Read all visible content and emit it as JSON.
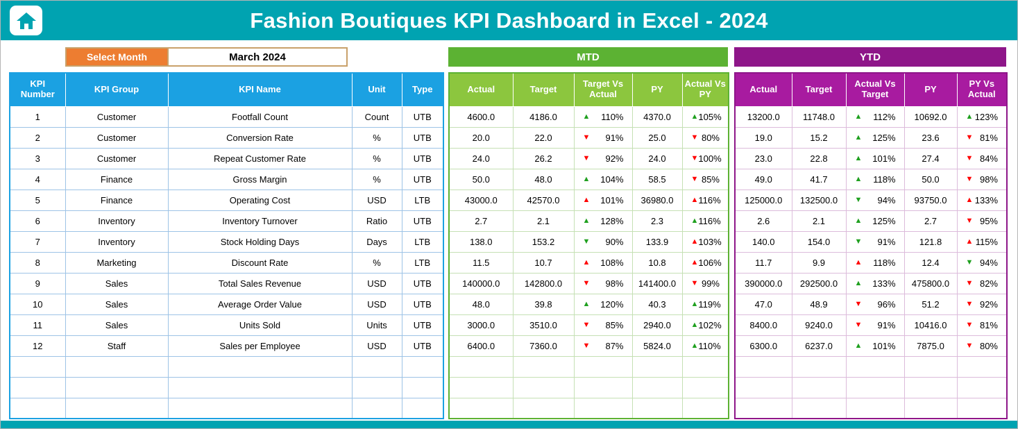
{
  "header": {
    "title": "Fashion Boutiques KPI Dashboard in Excel - 2024"
  },
  "controls": {
    "select_month_label": "Select Month",
    "selected_month": "March 2024"
  },
  "sections": {
    "mtd": "MTD",
    "ytd": "YTD"
  },
  "colors": {
    "banner_teal": "#00a3b1",
    "select_month_orange": "#ed7d31",
    "kpi_header_blue": "#1ba1e2",
    "mtd_bar_green": "#5cb233",
    "mtd_header_green": "#8cc63e",
    "ytd_bar_purple": "#8e1689",
    "ytd_header_purple": "#a81ba0",
    "arrow_green": "#1fa01f",
    "arrow_red": "#ff0000"
  },
  "kpi_table": {
    "headers": [
      "KPI Number",
      "KPI Group",
      "KPI Name",
      "Unit",
      "Type"
    ],
    "mtd_headers": [
      "Actual",
      "Target",
      "Target Vs Actual",
      "PY",
      "Actual Vs PY"
    ],
    "ytd_headers": [
      "Actual",
      "Target",
      "Actual Vs Target",
      "PY",
      "PY Vs Actual"
    ],
    "empty_rows": 3,
    "rows": [
      {
        "number": "1",
        "group": "Customer",
        "name": "Footfall Count",
        "unit": "Count",
        "type": "UTB",
        "mtd": {
          "actual": "4600.0",
          "target": "4186.0",
          "target_vs_actual": {
            "dir": "up",
            "color": "green",
            "value": "110%"
          },
          "py": "4370.0",
          "actual_vs_py": {
            "dir": "up",
            "color": "green",
            "value": "105%"
          }
        },
        "ytd": {
          "actual": "13200.0",
          "target": "11748.0",
          "actual_vs_target": {
            "dir": "up",
            "color": "green",
            "value": "112%"
          },
          "py": "10692.0",
          "py_vs_actual": {
            "dir": "up",
            "color": "green",
            "value": "123%"
          }
        }
      },
      {
        "number": "2",
        "group": "Customer",
        "name": "Conversion Rate",
        "unit": "%",
        "type": "UTB",
        "mtd": {
          "actual": "20.0",
          "target": "22.0",
          "target_vs_actual": {
            "dir": "down",
            "color": "red",
            "value": "91%"
          },
          "py": "25.0",
          "actual_vs_py": {
            "dir": "down",
            "color": "red",
            "value": "80%"
          }
        },
        "ytd": {
          "actual": "19.0",
          "target": "15.2",
          "actual_vs_target": {
            "dir": "up",
            "color": "green",
            "value": "125%"
          },
          "py": "23.6",
          "py_vs_actual": {
            "dir": "down",
            "color": "red",
            "value": "81%"
          }
        }
      },
      {
        "number": "3",
        "group": "Customer",
        "name": "Repeat Customer Rate",
        "unit": "%",
        "type": "UTB",
        "mtd": {
          "actual": "24.0",
          "target": "26.2",
          "target_vs_actual": {
            "dir": "down",
            "color": "red",
            "value": "92%"
          },
          "py": "24.0",
          "actual_vs_py": {
            "dir": "down",
            "color": "red",
            "value": "100%"
          }
        },
        "ytd": {
          "actual": "23.0",
          "target": "22.8",
          "actual_vs_target": {
            "dir": "up",
            "color": "green",
            "value": "101%"
          },
          "py": "27.4",
          "py_vs_actual": {
            "dir": "down",
            "color": "red",
            "value": "84%"
          }
        }
      },
      {
        "number": "4",
        "group": "Finance",
        "name": "Gross Margin",
        "unit": "%",
        "type": "UTB",
        "mtd": {
          "actual": "50.0",
          "target": "48.0",
          "target_vs_actual": {
            "dir": "up",
            "color": "green",
            "value": "104%"
          },
          "py": "58.5",
          "actual_vs_py": {
            "dir": "down",
            "color": "red",
            "value": "85%"
          }
        },
        "ytd": {
          "actual": "49.0",
          "target": "41.7",
          "actual_vs_target": {
            "dir": "up",
            "color": "green",
            "value": "118%"
          },
          "py": "50.0",
          "py_vs_actual": {
            "dir": "down",
            "color": "red",
            "value": "98%"
          }
        }
      },
      {
        "number": "5",
        "group": "Finance",
        "name": "Operating Cost",
        "unit": "USD",
        "type": "LTB",
        "mtd": {
          "actual": "43000.0",
          "target": "42570.0",
          "target_vs_actual": {
            "dir": "up",
            "color": "red",
            "value": "101%"
          },
          "py": "36980.0",
          "actual_vs_py": {
            "dir": "up",
            "color": "red",
            "value": "116%"
          }
        },
        "ytd": {
          "actual": "125000.0",
          "target": "132500.0",
          "actual_vs_target": {
            "dir": "down",
            "color": "green",
            "value": "94%"
          },
          "py": "93750.0",
          "py_vs_actual": {
            "dir": "up",
            "color": "red",
            "value": "133%"
          }
        }
      },
      {
        "number": "6",
        "group": "Inventory",
        "name": "Inventory Turnover",
        "unit": "Ratio",
        "type": "UTB",
        "mtd": {
          "actual": "2.7",
          "target": "2.1",
          "target_vs_actual": {
            "dir": "up",
            "color": "green",
            "value": "128%"
          },
          "py": "2.3",
          "actual_vs_py": {
            "dir": "up",
            "color": "green",
            "value": "116%"
          }
        },
        "ytd": {
          "actual": "2.6",
          "target": "2.1",
          "actual_vs_target": {
            "dir": "up",
            "color": "green",
            "value": "125%"
          },
          "py": "2.7",
          "py_vs_actual": {
            "dir": "down",
            "color": "red",
            "value": "95%"
          }
        }
      },
      {
        "number": "7",
        "group": "Inventory",
        "name": "Stock Holding Days",
        "unit": "Days",
        "type": "LTB",
        "mtd": {
          "actual": "138.0",
          "target": "153.2",
          "target_vs_actual": {
            "dir": "down",
            "color": "green",
            "value": "90%"
          },
          "py": "133.9",
          "actual_vs_py": {
            "dir": "up",
            "color": "red",
            "value": "103%"
          }
        },
        "ytd": {
          "actual": "140.0",
          "target": "154.0",
          "actual_vs_target": {
            "dir": "down",
            "color": "green",
            "value": "91%"
          },
          "py": "121.8",
          "py_vs_actual": {
            "dir": "up",
            "color": "red",
            "value": "115%"
          }
        }
      },
      {
        "number": "8",
        "group": "Marketing",
        "name": "Discount Rate",
        "unit": "%",
        "type": "LTB",
        "mtd": {
          "actual": "11.5",
          "target": "10.7",
          "target_vs_actual": {
            "dir": "up",
            "color": "red",
            "value": "108%"
          },
          "py": "10.8",
          "actual_vs_py": {
            "dir": "up",
            "color": "red",
            "value": "106%"
          }
        },
        "ytd": {
          "actual": "11.7",
          "target": "9.9",
          "actual_vs_target": {
            "dir": "up",
            "color": "red",
            "value": "118%"
          },
          "py": "12.4",
          "py_vs_actual": {
            "dir": "down",
            "color": "green",
            "value": "94%"
          }
        }
      },
      {
        "number": "9",
        "group": "Sales",
        "name": "Total Sales Revenue",
        "unit": "USD",
        "type": "UTB",
        "mtd": {
          "actual": "140000.0",
          "target": "142800.0",
          "target_vs_actual": {
            "dir": "down",
            "color": "red",
            "value": "98%"
          },
          "py": "141400.0",
          "actual_vs_py": {
            "dir": "down",
            "color": "red",
            "value": "99%"
          }
        },
        "ytd": {
          "actual": "390000.0",
          "target": "292500.0",
          "actual_vs_target": {
            "dir": "up",
            "color": "green",
            "value": "133%"
          },
          "py": "475800.0",
          "py_vs_actual": {
            "dir": "down",
            "color": "red",
            "value": "82%"
          }
        }
      },
      {
        "number": "10",
        "group": "Sales",
        "name": "Average Order Value",
        "unit": "USD",
        "type": "UTB",
        "mtd": {
          "actual": "48.0",
          "target": "39.8",
          "target_vs_actual": {
            "dir": "up",
            "color": "green",
            "value": "120%"
          },
          "py": "40.3",
          "actual_vs_py": {
            "dir": "up",
            "color": "green",
            "value": "119%"
          }
        },
        "ytd": {
          "actual": "47.0",
          "target": "48.9",
          "actual_vs_target": {
            "dir": "down",
            "color": "red",
            "value": "96%"
          },
          "py": "51.2",
          "py_vs_actual": {
            "dir": "down",
            "color": "red",
            "value": "92%"
          }
        }
      },
      {
        "number": "11",
        "group": "Sales",
        "name": "Units Sold",
        "unit": "Units",
        "type": "UTB",
        "mtd": {
          "actual": "3000.0",
          "target": "3510.0",
          "target_vs_actual": {
            "dir": "down",
            "color": "red",
            "value": "85%"
          },
          "py": "2940.0",
          "actual_vs_py": {
            "dir": "up",
            "color": "green",
            "value": "102%"
          }
        },
        "ytd": {
          "actual": "8400.0",
          "target": "9240.0",
          "actual_vs_target": {
            "dir": "down",
            "color": "red",
            "value": "91%"
          },
          "py": "10416.0",
          "py_vs_actual": {
            "dir": "down",
            "color": "red",
            "value": "81%"
          }
        }
      },
      {
        "number": "12",
        "group": "Staff",
        "name": "Sales per Employee",
        "unit": "USD",
        "type": "UTB",
        "mtd": {
          "actual": "6400.0",
          "target": "7360.0",
          "target_vs_actual": {
            "dir": "down",
            "color": "red",
            "value": "87%"
          },
          "py": "5824.0",
          "actual_vs_py": {
            "dir": "up",
            "color": "green",
            "value": "110%"
          }
        },
        "ytd": {
          "actual": "6300.0",
          "target": "6237.0",
          "actual_vs_target": {
            "dir": "up",
            "color": "green",
            "value": "101%"
          },
          "py": "7875.0",
          "py_vs_actual": {
            "dir": "down",
            "color": "red",
            "value": "80%"
          }
        }
      }
    ]
  }
}
